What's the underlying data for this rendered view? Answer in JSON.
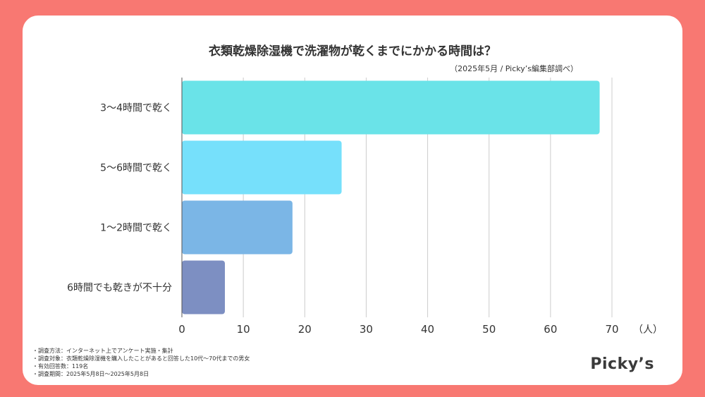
{
  "title": "衣類乾燥除湿機で洗濯物が乾くまでにかかる時間は？",
  "source": "（2025年5月 / Picky’s編集部調べ）",
  "brand": "Picky’s",
  "notes": [
    "・調査方法：インターネット上でアンケート実施・集計",
    "・調査対象：衣類乾燥除湿機を購入したことがあると回答した10代〜70代までの男女",
    "・有効回答数：119名",
    "・調査期間：2025年5月8日〜2025年5月8日"
  ],
  "colors": {
    "background": "#f87872",
    "card": "#ffffff",
    "grid": "#cccccc"
  },
  "chart_data": {
    "type": "bar",
    "orientation": "horizontal",
    "categories": [
      "3〜4時間で乾く",
      "5〜6時間で乾く",
      "1〜2時間で乾く",
      "6時間でも乾きが不十分"
    ],
    "values": [
      68,
      26,
      18,
      7
    ],
    "bar_colors": [
      "#6ae3e8",
      "#76e0fb",
      "#7bb6e6",
      "#7d8fc2"
    ],
    "xlim": [
      0,
      70
    ],
    "xticks": [
      0,
      10,
      20,
      30,
      40,
      50,
      60,
      70
    ],
    "xunit": "（人）",
    "grid": true
  }
}
